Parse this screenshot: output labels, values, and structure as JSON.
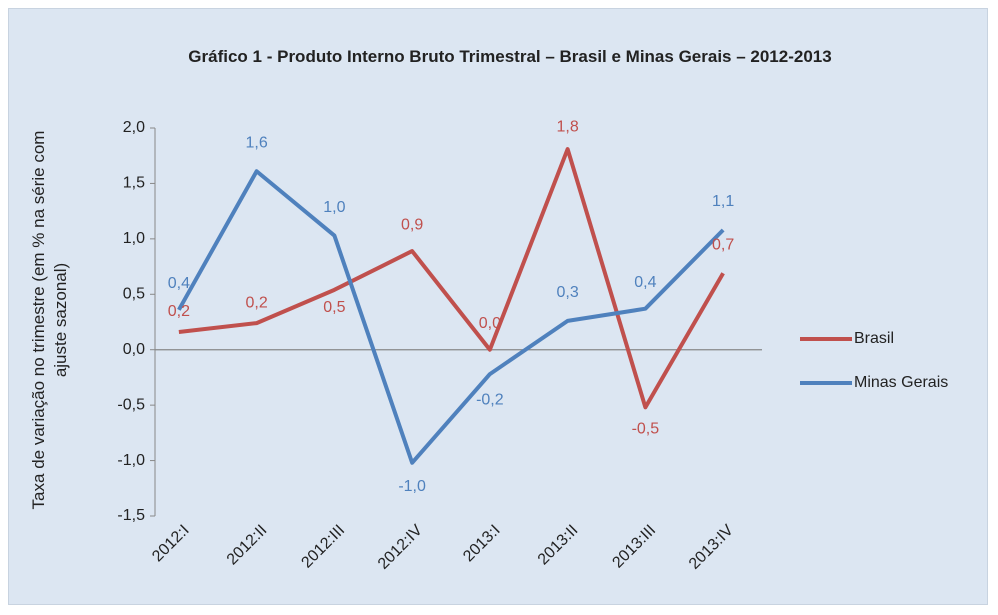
{
  "chart_data": {
    "type": "line",
    "title": "Gráfico 1 - Produto Interno Bruto Trimestral – Brasil e Minas Gerais – 2012-2013",
    "y_label": "Taxa de variação no trimestre (em % na série com ajuste sazonal)",
    "categories": [
      "2012:I",
      "2012:II",
      "2012:III",
      "2012:IV",
      "2013:I",
      "2013:II",
      "2013:III",
      "2013:IV"
    ],
    "series": [
      {
        "name": "Brasil",
        "color": "#c0504d",
        "values": [
          0.16,
          0.24,
          0.54,
          0.89,
          0.0,
          1.81,
          -0.52,
          0.69
        ],
        "value_labels": [
          "0,2",
          "0,2",
          "0,5",
          "0,9",
          "0,0",
          "1,8",
          "-0,5",
          "0,7"
        ]
      },
      {
        "name": "Minas Gerais",
        "color": "#4f81bd",
        "values": [
          0.36,
          1.61,
          1.03,
          -1.02,
          -0.22,
          0.26,
          0.37,
          1.08
        ],
        "value_labels": [
          "0,4",
          "1,6",
          "1,0",
          "-1,0",
          "-0,2",
          "0,3",
          "0,4",
          "1,1"
        ]
      }
    ],
    "ylim": [
      -1.5,
      2.0
    ],
    "yticks": [
      {
        "value": -1.5,
        "label": "-1,5"
      },
      {
        "value": -1.0,
        "label": "-1,0"
      },
      {
        "value": -0.5,
        "label": "-0,5"
      },
      {
        "value": 0.0,
        "label": "0,0"
      },
      {
        "value": 0.5,
        "label": "0,5"
      },
      {
        "value": 1.0,
        "label": "1,0"
      },
      {
        "value": 1.5,
        "label": "1,5"
      },
      {
        "value": 2.0,
        "label": "2,0"
      }
    ],
    "legend": "right"
  }
}
